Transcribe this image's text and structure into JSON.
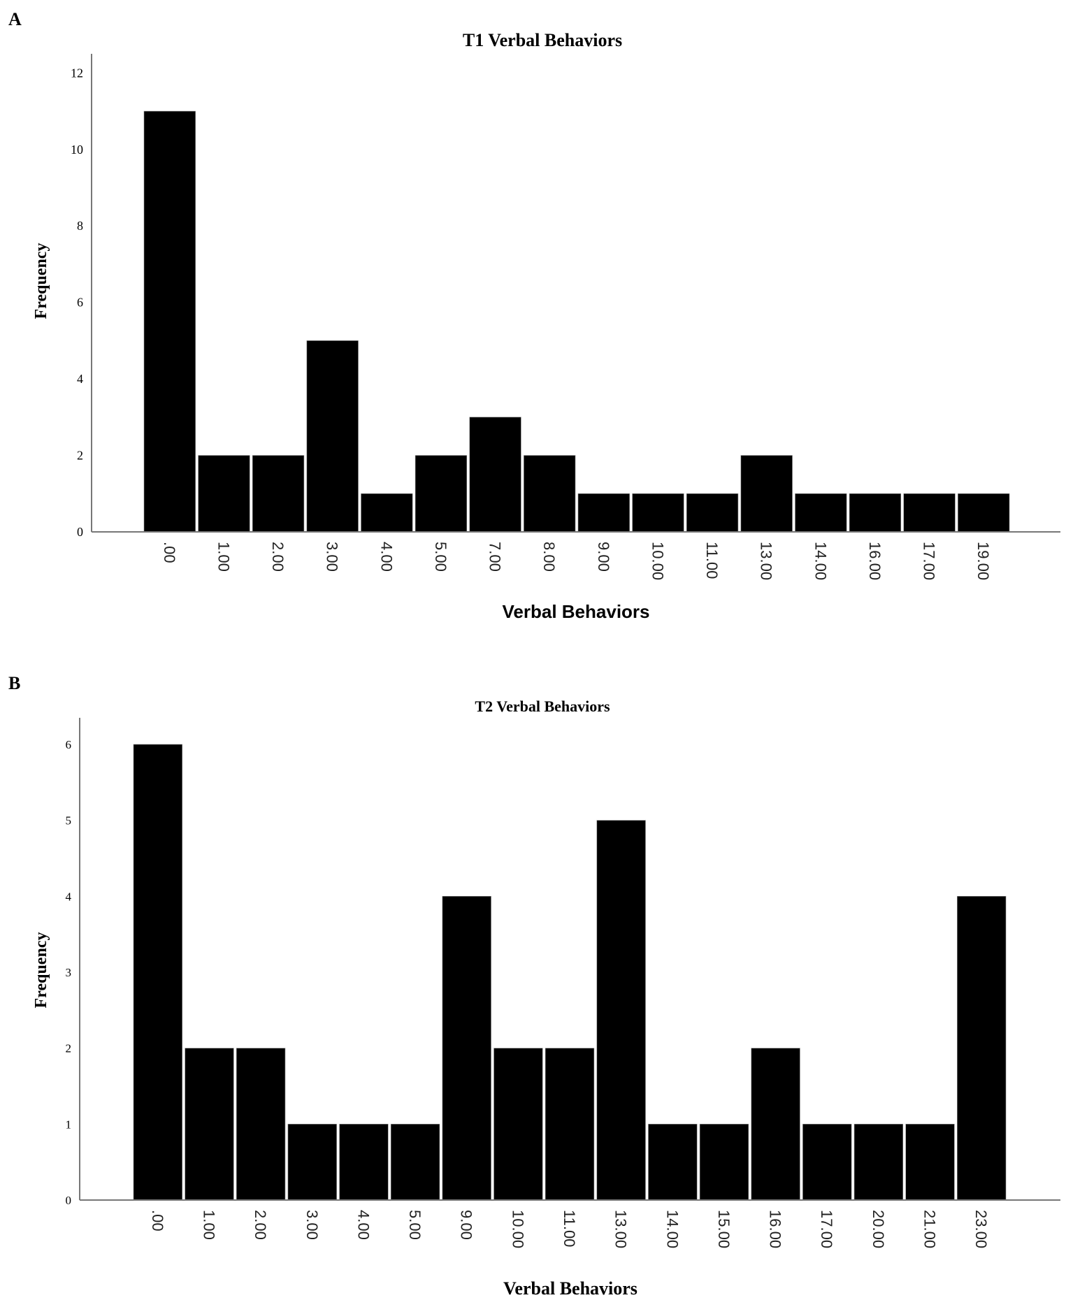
{
  "panels": [
    {
      "label": "A"
    },
    {
      "label": "B"
    }
  ],
  "chart_data": [
    {
      "type": "bar",
      "title": "T1 Verbal Behaviors",
      "xlabel": "Verbal Behaviors",
      "ylabel": "Frequency",
      "categories": [
        ".00",
        "1.00",
        "2.00",
        "3.00",
        "4.00",
        "5.00",
        "7.00",
        "8.00",
        "9.00",
        "10.00",
        "11.00",
        "13.00",
        "14.00",
        "16.00",
        "17.00",
        "19.00"
      ],
      "values": [
        11,
        2,
        2,
        5,
        1,
        2,
        3,
        2,
        1,
        1,
        1,
        2,
        1,
        1,
        1,
        1
      ],
      "yticks": [
        "0",
        "2",
        "4",
        "6",
        "8",
        "10",
        "12"
      ],
      "ylim": [
        0,
        12.5
      ],
      "grid": false,
      "bar_color": "#000000"
    },
    {
      "type": "bar",
      "title": "T2 Verbal Behaviors",
      "xlabel": "Verbal Behaviors",
      "ylabel": "Frequency",
      "categories": [
        ".00",
        "1.00",
        "2.00",
        "3.00",
        "4.00",
        "5.00",
        "9.00",
        "10.00",
        "11.00",
        "13.00",
        "14.00",
        "15.00",
        "16.00",
        "17.00",
        "20.00",
        "21.00",
        "23.00"
      ],
      "values": [
        6,
        2,
        2,
        1,
        1,
        1,
        4,
        2,
        2,
        5,
        1,
        1,
        2,
        1,
        1,
        1,
        4
      ],
      "yticks": [
        "0",
        "1",
        "2",
        "3",
        "4",
        "5",
        "6"
      ],
      "ylim": [
        0,
        6.35
      ],
      "grid": false,
      "bar_color": "#000000"
    }
  ]
}
